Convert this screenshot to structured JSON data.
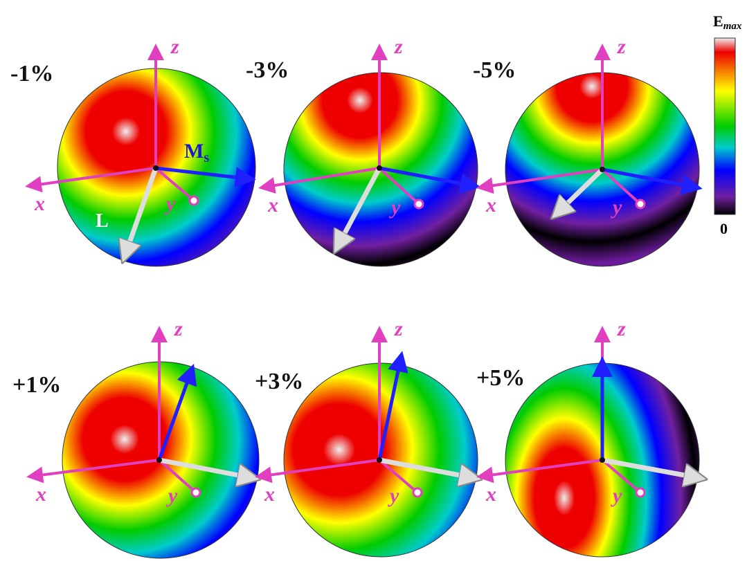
{
  "panels": [
    {
      "label": "-1%",
      "axes": {
        "x": "x",
        "y": "y",
        "z": "z"
      }
    },
    {
      "label": "-3%",
      "axes": {
        "x": "x",
        "y": "y",
        "z": "z"
      }
    },
    {
      "label": "-5%",
      "axes": {
        "x": "x",
        "y": "y",
        "z": "z"
      }
    },
    {
      "label": "+1%",
      "axes": {
        "x": "x",
        "y": "y",
        "z": "z"
      }
    },
    {
      "label": "+3%",
      "axes": {
        "x": "x",
        "y": "y",
        "z": "z"
      }
    },
    {
      "label": "+5%",
      "axes": {
        "x": "x",
        "y": "y",
        "z": "z"
      }
    }
  ],
  "vectors": {
    "ms": "M",
    "ms_sub": "s",
    "l": "L"
  },
  "colorbar": {
    "title": "E",
    "title_sub": "max",
    "min": "0"
  }
}
